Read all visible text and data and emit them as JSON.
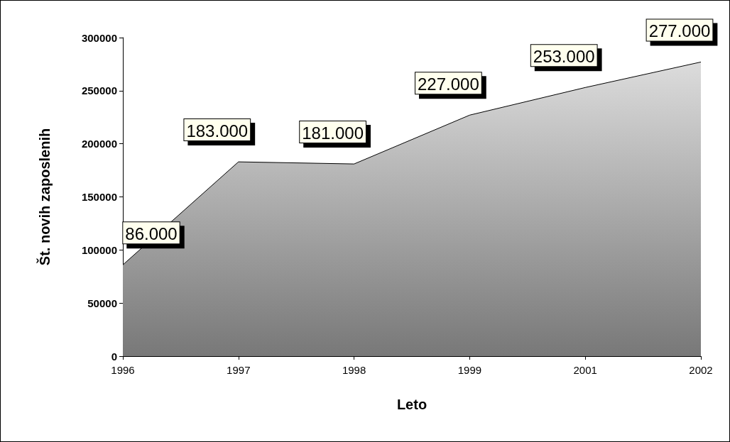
{
  "chart_data": {
    "type": "area",
    "xlabel": "Leto",
    "ylabel": "Št. novih zaposlenih",
    "categories": [
      "1996",
      "1997",
      "1998",
      "1999",
      "2001",
      "2002"
    ],
    "values": [
      86000,
      183000,
      181000,
      227000,
      253000,
      277000
    ],
    "value_labels": [
      "86.000",
      "183.000",
      "181.000",
      "227.000",
      "253.000",
      "277.000"
    ],
    "color": "#c8c8c8",
    "ylim": [
      0,
      300000
    ],
    "yticks": [
      0,
      50000,
      100000,
      150000,
      200000,
      250000,
      300000
    ],
    "grid": false
  }
}
